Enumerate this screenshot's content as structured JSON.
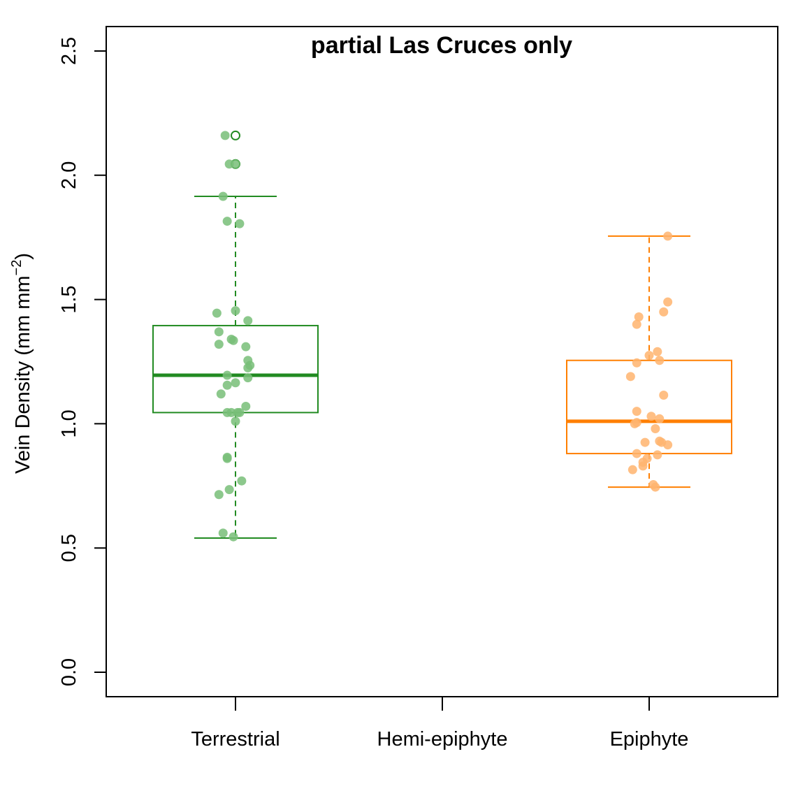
{
  "chart_data": {
    "type": "box",
    "title": "partial Las Cruces only",
    "xlabel": "",
    "ylabel": {
      "base": "Vein Density ",
      "paren_open": "(mm mm",
      "superscript": "−2",
      "paren_close": ")"
    },
    "ylim": [
      -0.1,
      2.6
    ],
    "yticks": [
      "0.0",
      "0.5",
      "1.0",
      "1.5",
      "2.0",
      "2.5"
    ],
    "categories": [
      "Terrestrial",
      "Hemi-epiphyte",
      "Epiphyte"
    ],
    "grid": false,
    "legend": "none",
    "series": [
      {
        "category": "Terrestrial",
        "color": "#228B22",
        "point_color": "#78BE78",
        "box": {
          "whisker_low": 0.54,
          "q1": 1.045,
          "median": 1.195,
          "q3": 1.395,
          "whisker_high": 1.915
        },
        "outliers": [
          2.16,
          2.045
        ],
        "points": [
          [
            -0.05,
            2.16
          ],
          [
            0.0,
            2.045
          ],
          [
            -0.03,
            2.045
          ],
          [
            -0.06,
            1.915
          ],
          [
            -0.04,
            1.815
          ],
          [
            0.02,
            1.805
          ],
          [
            -0.09,
            1.445
          ],
          [
            0.0,
            1.455
          ],
          [
            0.06,
            1.415
          ],
          [
            -0.08,
            1.37
          ],
          [
            -0.02,
            1.34
          ],
          [
            -0.01,
            1.335
          ],
          [
            -0.08,
            1.32
          ],
          [
            0.05,
            1.31
          ],
          [
            0.06,
            1.255
          ],
          [
            0.07,
            1.235
          ],
          [
            0.06,
            1.225
          ],
          [
            -0.04,
            1.195
          ],
          [
            0.06,
            1.185
          ],
          [
            0.0,
            1.165
          ],
          [
            -0.04,
            1.155
          ],
          [
            -0.07,
            1.12
          ],
          [
            0.05,
            1.07
          ],
          [
            -0.04,
            1.045
          ],
          [
            -0.02,
            1.045
          ],
          [
            0.01,
            1.045
          ],
          [
            0.02,
            1.045
          ],
          [
            0.0,
            1.01
          ],
          [
            -0.04,
            0.865
          ],
          [
            -0.04,
            0.86
          ],
          [
            0.03,
            0.77
          ],
          [
            -0.03,
            0.735
          ],
          [
            -0.08,
            0.715
          ],
          [
            -0.06,
            0.56
          ],
          [
            -0.01,
            0.545
          ]
        ]
      },
      {
        "category": "Hemi-epiphyte",
        "color": "#000000",
        "point_color": "#000000",
        "box": null,
        "outliers": [],
        "points": []
      },
      {
        "category": "Epiphyte",
        "color": "#FF7F00",
        "point_color": "#FFB46E",
        "box": {
          "whisker_low": 0.745,
          "q1": 0.88,
          "median": 1.01,
          "q3": 1.255,
          "whisker_high": 1.755
        },
        "outliers": [],
        "points": [
          [
            0.09,
            1.755
          ],
          [
            0.09,
            1.49
          ],
          [
            0.07,
            1.45
          ],
          [
            -0.05,
            1.43
          ],
          [
            -0.06,
            1.4
          ],
          [
            0.04,
            1.29
          ],
          [
            0.0,
            1.275
          ],
          [
            0.05,
            1.255
          ],
          [
            -0.06,
            1.245
          ],
          [
            -0.09,
            1.19
          ],
          [
            0.07,
            1.115
          ],
          [
            -0.06,
            1.05
          ],
          [
            0.01,
            1.03
          ],
          [
            0.05,
            1.02
          ],
          [
            -0.07,
            1.0
          ],
          [
            -0.06,
            1.005
          ],
          [
            0.03,
            0.98
          ],
          [
            0.05,
            0.93
          ],
          [
            0.06,
            0.925
          ],
          [
            -0.02,
            0.925
          ],
          [
            0.09,
            0.915
          ],
          [
            -0.06,
            0.88
          ],
          [
            0.04,
            0.875
          ],
          [
            -0.01,
            0.86
          ],
          [
            -0.03,
            0.845
          ],
          [
            -0.03,
            0.83
          ],
          [
            -0.08,
            0.815
          ],
          [
            0.02,
            0.755
          ],
          [
            0.03,
            0.745
          ]
        ]
      }
    ]
  }
}
